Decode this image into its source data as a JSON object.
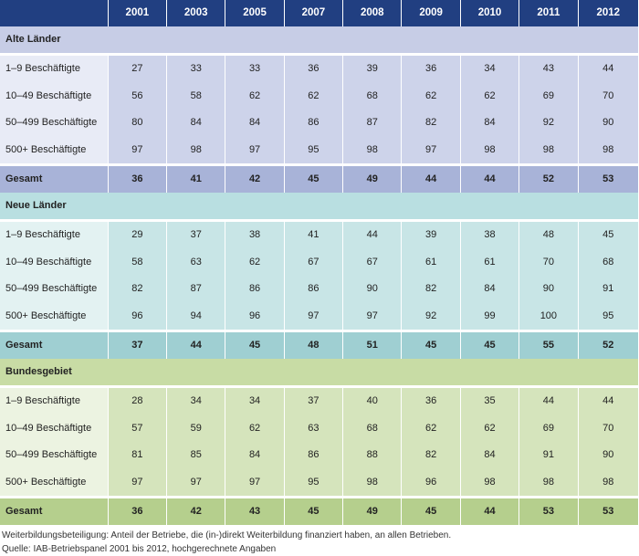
{
  "header": {
    "years": [
      "2001",
      "2003",
      "2005",
      "2007",
      "2008",
      "2009",
      "2010",
      "2011",
      "2012"
    ]
  },
  "groups": [
    {
      "title": "Alte Länder",
      "rows": [
        {
          "label": "1–9 Beschäftigte",
          "values": [
            "27",
            "33",
            "33",
            "36",
            "39",
            "36",
            "34",
            "43",
            "44"
          ]
        },
        {
          "label": "10–49 Beschäftigte",
          "values": [
            "56",
            "58",
            "62",
            "62",
            "68",
            "62",
            "62",
            "69",
            "70"
          ]
        },
        {
          "label": "50–499 Beschäftigte",
          "values": [
            "80",
            "84",
            "84",
            "86",
            "87",
            "82",
            "84",
            "92",
            "90"
          ]
        },
        {
          "label": "500+ Beschäftigte",
          "values": [
            "97",
            "98",
            "97",
            "95",
            "98",
            "97",
            "98",
            "98",
            "98"
          ]
        }
      ],
      "total": {
        "label": "Gesamt",
        "values": [
          "36",
          "41",
          "42",
          "45",
          "49",
          "44",
          "44",
          "52",
          "53"
        ]
      }
    },
    {
      "title": "Neue Länder",
      "rows": [
        {
          "label": "1–9 Beschäftigte",
          "values": [
            "29",
            "37",
            "38",
            "41",
            "44",
            "39",
            "38",
            "48",
            "45"
          ]
        },
        {
          "label": "10–49 Beschäftigte",
          "values": [
            "58",
            "63",
            "62",
            "67",
            "67",
            "61",
            "61",
            "70",
            "68"
          ]
        },
        {
          "label": "50–499 Beschäftigte",
          "values": [
            "82",
            "87",
            "86",
            "86",
            "90",
            "82",
            "84",
            "90",
            "91"
          ]
        },
        {
          "label": "500+ Beschäftigte",
          "values": [
            "96",
            "94",
            "96",
            "97",
            "97",
            "92",
            "99",
            "100",
            "95"
          ]
        }
      ],
      "total": {
        "label": "Gesamt",
        "values": [
          "37",
          "44",
          "45",
          "48",
          "51",
          "45",
          "45",
          "55",
          "52"
        ]
      }
    },
    {
      "title": "Bundesgebiet",
      "rows": [
        {
          "label": "1–9 Beschäftigte",
          "values": [
            "28",
            "34",
            "34",
            "37",
            "40",
            "36",
            "35",
            "44",
            "44"
          ]
        },
        {
          "label": "10–49 Beschäftigte",
          "values": [
            "57",
            "59",
            "62",
            "63",
            "68",
            "62",
            "62",
            "69",
            "70"
          ]
        },
        {
          "label": "50–499 Beschäftigte",
          "values": [
            "81",
            "85",
            "84",
            "86",
            "88",
            "82",
            "84",
            "91",
            "90"
          ]
        },
        {
          "label": "500+ Beschäftigte",
          "values": [
            "97",
            "97",
            "97",
            "95",
            "98",
            "96",
            "98",
            "98",
            "98"
          ]
        }
      ],
      "total": {
        "label": "Gesamt",
        "values": [
          "36",
          "42",
          "43",
          "45",
          "49",
          "45",
          "44",
          "53",
          "53"
        ]
      }
    }
  ],
  "notes": {
    "definition": "Weiterbildungsbeteiligung: Anteil der Betriebe, die (in-)direkt Weiterbildung finanziert haben, an allen Betrieben.",
    "source": "Quelle: IAB-Betriebspanel 2001 bis 2012, hochgerechnete Angaben"
  },
  "colors": {
    "header": "#213f81",
    "alte_laender": "#a8b3d8",
    "neue_laender": "#9fcfd2",
    "bundesgebiet": "#b5cf8d"
  }
}
